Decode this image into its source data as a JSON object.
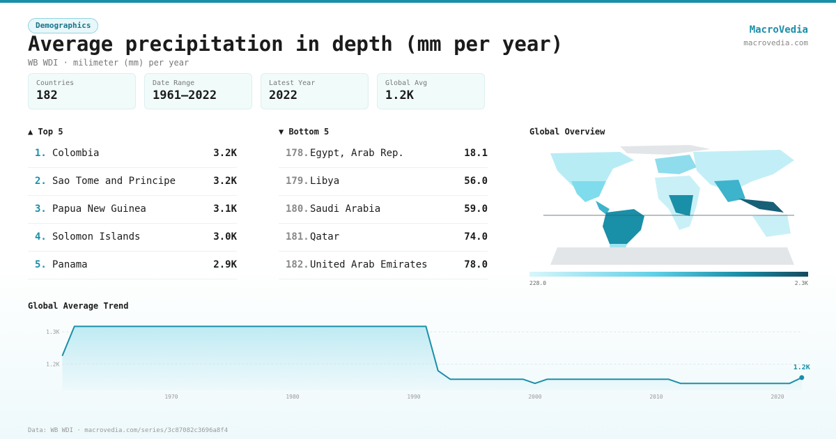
{
  "header": {
    "tag": "Demographics",
    "title": "Average precipitation in depth (mm per year)",
    "subtitle": "WB WDI · milimeter (mm) per year",
    "brand": "MacroVedia",
    "site": "macrovedia.com"
  },
  "stats": [
    {
      "label": "Countries",
      "value": "182"
    },
    {
      "label": "Date Range",
      "value": "1961–2022"
    },
    {
      "label": "Latest Year",
      "value": "2022"
    },
    {
      "label": "Global Avg",
      "value": "1.2K"
    }
  ],
  "top5": {
    "title": "▲ Top 5",
    "rows": [
      {
        "rank": "1.",
        "name": "Colombia",
        "value": "3.2K"
      },
      {
        "rank": "2.",
        "name": "Sao Tome and Principe",
        "value": "3.2K"
      },
      {
        "rank": "3.",
        "name": "Papua New Guinea",
        "value": "3.1K"
      },
      {
        "rank": "4.",
        "name": "Solomon Islands",
        "value": "3.0K"
      },
      {
        "rank": "5.",
        "name": "Panama",
        "value": "2.9K"
      }
    ]
  },
  "bottom5": {
    "title": "▼ Bottom 5",
    "rows": [
      {
        "rank": "178.",
        "name": "Egypt, Arab Rep.",
        "value": "18.1"
      },
      {
        "rank": "179.",
        "name": "Libya",
        "value": "56.0"
      },
      {
        "rank": "180.",
        "name": "Saudi Arabia",
        "value": "59.0"
      },
      {
        "rank": "181.",
        "name": "Qatar",
        "value": "74.0"
      },
      {
        "rank": "182.",
        "name": "United Arab Emirates",
        "value": "78.0"
      }
    ]
  },
  "map": {
    "title": "Global Overview",
    "legend_min": "228.0",
    "legend_max": "2.3K"
  },
  "chart_data": {
    "type": "line",
    "title": "Global Average Trend",
    "color": "#1a8fa8",
    "x": [
      1961,
      1962,
      1963,
      1964,
      1965,
      1966,
      1967,
      1968,
      1969,
      1970,
      1971,
      1972,
      1973,
      1974,
      1975,
      1976,
      1977,
      1978,
      1979,
      1980,
      1981,
      1982,
      1983,
      1984,
      1985,
      1986,
      1987,
      1988,
      1989,
      1990,
      1991,
      1992,
      1993,
      1994,
      1995,
      1996,
      1997,
      1998,
      1999,
      2000,
      2001,
      2002,
      2003,
      2004,
      2005,
      2006,
      2007,
      2008,
      2009,
      2010,
      2011,
      2012,
      2013,
      2014,
      2015,
      2016,
      2017,
      2018,
      2019,
      2020,
      2021,
      2022
    ],
    "values": [
      1226,
      1317,
      1317,
      1317,
      1317,
      1317,
      1317,
      1317,
      1317,
      1317,
      1317,
      1317,
      1317,
      1317,
      1317,
      1317,
      1317,
      1317,
      1317,
      1317,
      1317,
      1317,
      1317,
      1317,
      1317,
      1317,
      1317,
      1317,
      1317,
      1317,
      1317,
      1180,
      1154,
      1154,
      1154,
      1154,
      1154,
      1154,
      1154,
      1141,
      1154,
      1154,
      1154,
      1154,
      1154,
      1154,
      1154,
      1154,
      1154,
      1154,
      1154,
      1141,
      1141,
      1141,
      1141,
      1141,
      1141,
      1141,
      1141,
      1141,
      1141,
      1159
    ],
    "value_labels": [
      null,
      null,
      null,
      null,
      null,
      null,
      null,
      null,
      null,
      null,
      null,
      null,
      null,
      null,
      null,
      null,
      null,
      null,
      null,
      null,
      null,
      null,
      null,
      null,
      null,
      null,
      null,
      null,
      null,
      null,
      null,
      null,
      null,
      null,
      null,
      null,
      null,
      null,
      null,
      null,
      null,
      null,
      null,
      null,
      null,
      null,
      null,
      null,
      null,
      null,
      null,
      null,
      null,
      null,
      null,
      null,
      null,
      null,
      null,
      null,
      null,
      "1.2K"
    ],
    "xlim": [
      1961,
      2022
    ],
    "ylim": [
      1120,
      1335
    ],
    "xticks": [
      1970,
      1980,
      1990,
      2000,
      2010,
      2020
    ],
    "yticks": [
      {
        "value": 1200,
        "label": "1.2K"
      },
      {
        "value": 1300,
        "label": "1.3K"
      }
    ],
    "grid": true
  },
  "footer": "Data: WB WDI · macrovedia.com/series/3c87082c3696a8f4"
}
